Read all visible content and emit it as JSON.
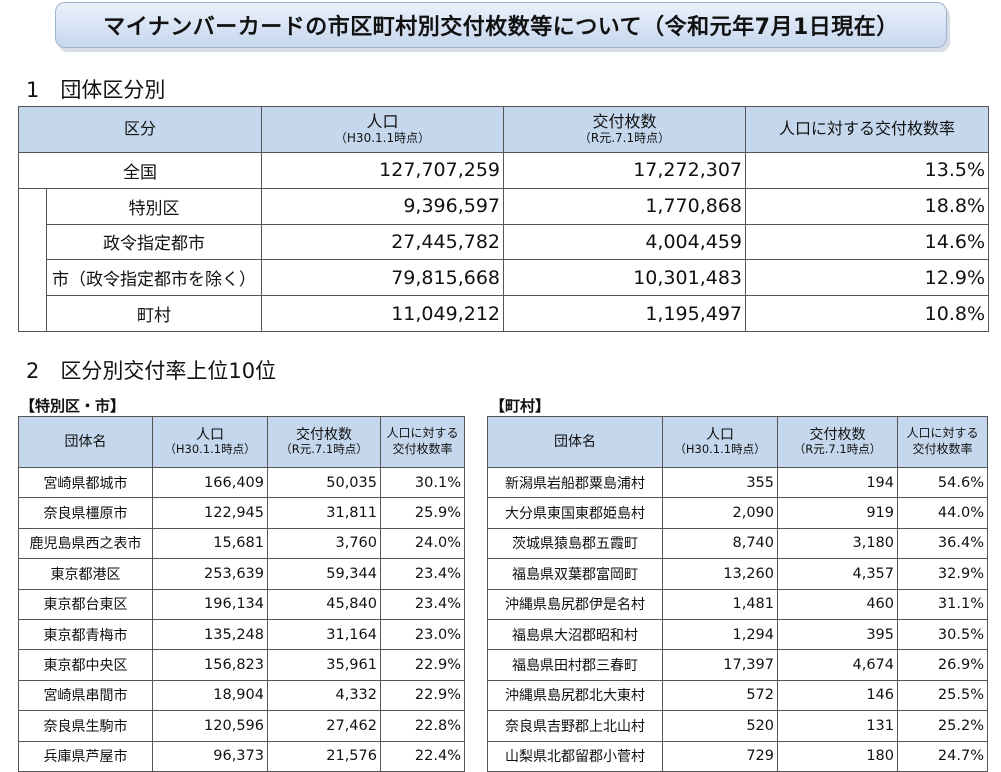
{
  "title": "マイナンバーカードの市区町村別交付枚数等について（令和元年7月1日現在）",
  "section1": {
    "heading": "1　団体区分別",
    "headers": {
      "category": "区分",
      "population": "人口",
      "population_note": "（H30.1.1時点）",
      "issued": "交付枚数",
      "issued_note": "（R元.7.1時点）",
      "rate": "人口に対する交付枚数率"
    },
    "rows": [
      {
        "label": "全国",
        "population": "127,707,259",
        "issued": "17,272,307",
        "rate": "13.5%"
      },
      {
        "label": "特別区",
        "population": "9,396,597",
        "issued": "1,770,868",
        "rate": "18.8%"
      },
      {
        "label": "政令指定都市",
        "population": "27,445,782",
        "issued": "4,004,459",
        "rate": "14.6%"
      },
      {
        "label": "市（政令指定都市を除く）",
        "population": "79,815,668",
        "issued": "10,301,483",
        "rate": "12.9%"
      },
      {
        "label": "町村",
        "population": "11,049,212",
        "issued": "1,195,497",
        "rate": "10.8%"
      }
    ]
  },
  "section2": {
    "heading": "2　区分別交付率上位10位",
    "headers": {
      "name": "団体名",
      "population": "人口",
      "population_note": "（H30.1.1時点）",
      "issued": "交付枚数",
      "issued_note": "（R元.7.1時点）",
      "rate_line1": "人口に対する",
      "rate_line2": "交付枚数率"
    },
    "cities": {
      "label": "【特別区・市】",
      "rows": [
        {
          "name": "宮崎県都城市",
          "population": "166,409",
          "issued": "50,035",
          "rate": "30.1%"
        },
        {
          "name": "奈良県橿原市",
          "population": "122,945",
          "issued": "31,811",
          "rate": "25.9%"
        },
        {
          "name": "鹿児島県西之表市",
          "population": "15,681",
          "issued": "3,760",
          "rate": "24.0%"
        },
        {
          "name": "東京都港区",
          "population": "253,639",
          "issued": "59,344",
          "rate": "23.4%"
        },
        {
          "name": "東京都台東区",
          "population": "196,134",
          "issued": "45,840",
          "rate": "23.4%"
        },
        {
          "name": "東京都青梅市",
          "population": "135,248",
          "issued": "31,164",
          "rate": "23.0%"
        },
        {
          "name": "東京都中央区",
          "population": "156,823",
          "issued": "35,961",
          "rate": "22.9%"
        },
        {
          "name": "宮崎県串間市",
          "population": "18,904",
          "issued": "4,332",
          "rate": "22.9%"
        },
        {
          "name": "奈良県生駒市",
          "population": "120,596",
          "issued": "27,462",
          "rate": "22.8%"
        },
        {
          "name": "兵庫県芦屋市",
          "population": "96,373",
          "issued": "21,576",
          "rate": "22.4%"
        }
      ]
    },
    "towns": {
      "label": "【町村】",
      "rows": [
        {
          "name": "新潟県岩船郡粟島浦村",
          "population": "355",
          "issued": "194",
          "rate": "54.6%"
        },
        {
          "name": "大分県東国東郡姫島村",
          "population": "2,090",
          "issued": "919",
          "rate": "44.0%"
        },
        {
          "name": "茨城県猿島郡五霞町",
          "population": "8,740",
          "issued": "3,180",
          "rate": "36.4%"
        },
        {
          "name": "福島県双葉郡富岡町",
          "population": "13,260",
          "issued": "4,357",
          "rate": "32.9%"
        },
        {
          "name": "沖縄県島尻郡伊是名村",
          "population": "1,481",
          "issued": "460",
          "rate": "31.1%"
        },
        {
          "name": "福島県大沼郡昭和村",
          "population": "1,294",
          "issued": "395",
          "rate": "30.5%"
        },
        {
          "name": "福島県田村郡三春町",
          "population": "17,397",
          "issued": "4,674",
          "rate": "26.9%"
        },
        {
          "name": "沖縄県島尻郡北大東村",
          "population": "572",
          "issued": "146",
          "rate": "25.5%"
        },
        {
          "name": "奈良県吉野郡上北山村",
          "population": "520",
          "issued": "131",
          "rate": "25.2%"
        },
        {
          "name": "山梨県北都留郡小菅村",
          "population": "729",
          "issued": "180",
          "rate": "24.7%"
        }
      ]
    }
  }
}
